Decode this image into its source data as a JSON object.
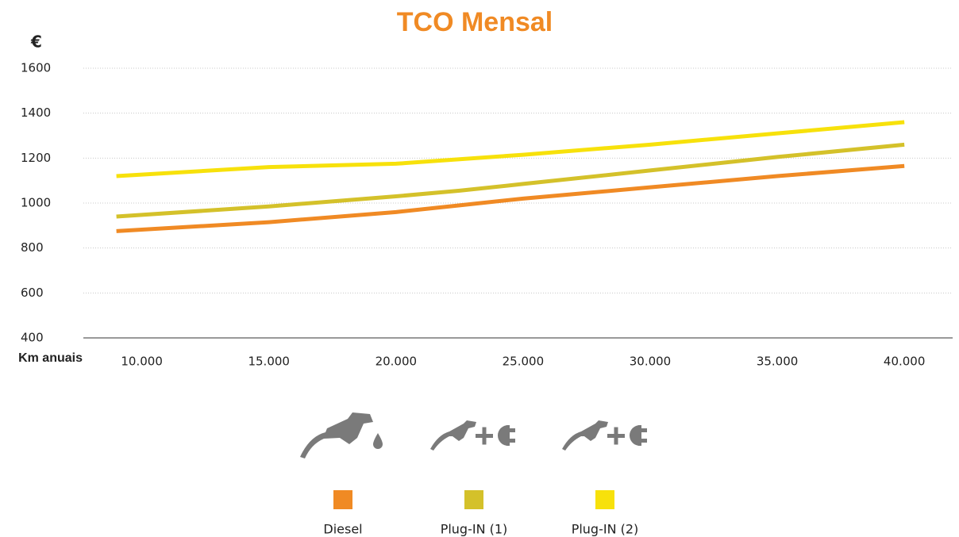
{
  "chart_data": {
    "type": "line",
    "title": "TCO Mensal",
    "y_label": "€",
    "x_label": "Km anuais",
    "x": [
      9000,
      15000,
      20000,
      22500,
      25000,
      30000,
      35000,
      40000
    ],
    "series": [
      {
        "name": "Diesel",
        "color": "#f08a24",
        "values": [
          875,
          915,
          960,
          990,
          1020,
          1070,
          1120,
          1165
        ]
      },
      {
        "name": "Plug-IN (1)",
        "color": "#d4c12a",
        "values": [
          940,
          985,
          1030,
          1055,
          1085,
          1145,
          1205,
          1260
        ]
      },
      {
        "name": "Plug-IN (2)",
        "color": "#f7e10b",
        "values": [
          1120,
          1160,
          1175,
          1195,
          1215,
          1260,
          1310,
          1360
        ]
      }
    ],
    "xlim": [
      7700,
      41900
    ],
    "xticks": [
      {
        "value": 10000,
        "label": "10.000"
      },
      {
        "value": 15000,
        "label": "15.000"
      },
      {
        "value": 20000,
        "label": "20.000"
      },
      {
        "value": 25000,
        "label": "25.000"
      },
      {
        "value": 30000,
        "label": "30.000"
      },
      {
        "value": 35000,
        "label": "35.000"
      },
      {
        "value": 40000,
        "label": "40.000"
      }
    ],
    "ylim": [
      400,
      1600
    ],
    "yticks": [
      400,
      600,
      800,
      1000,
      1200,
      1400,
      1600
    ],
    "grid": true
  }
}
